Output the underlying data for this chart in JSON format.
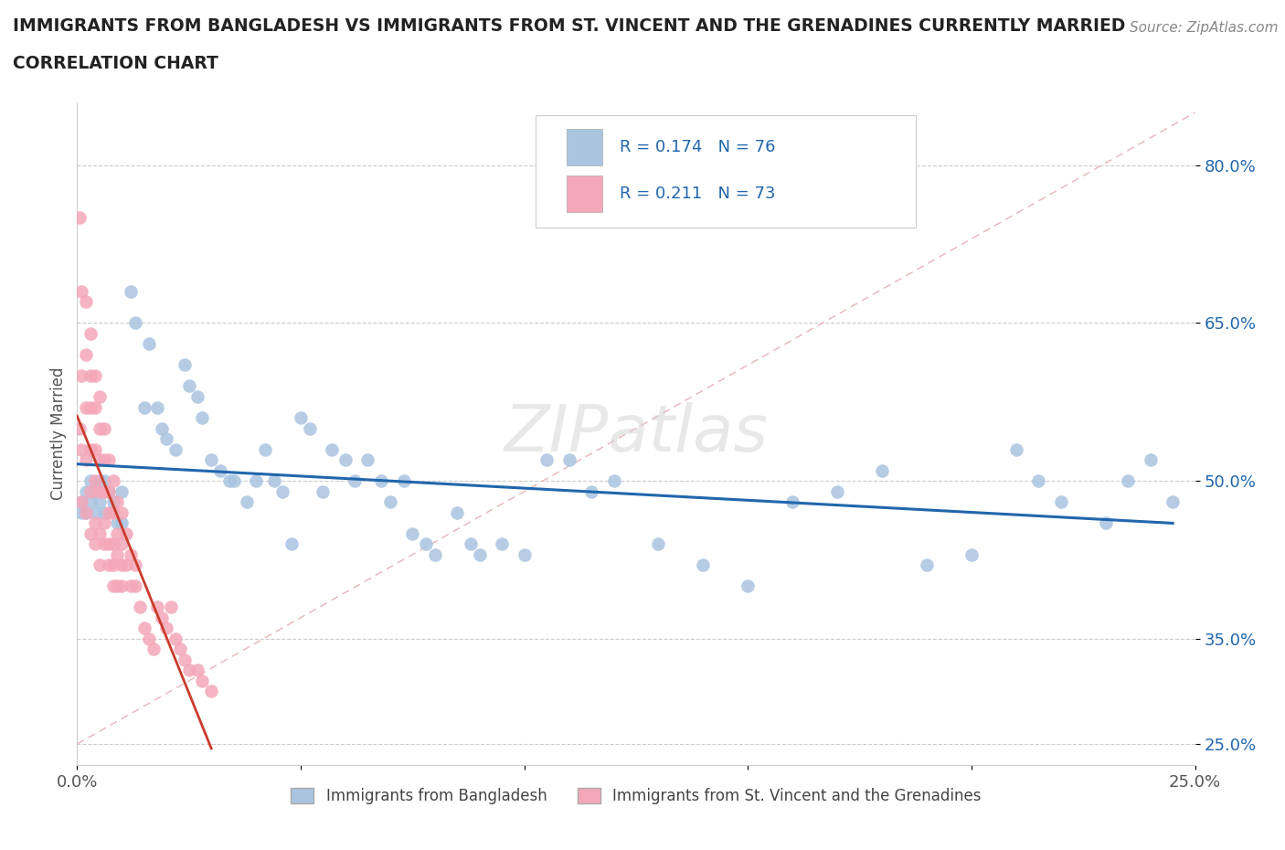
{
  "title_line1": "IMMIGRANTS FROM BANGLADESH VS IMMIGRANTS FROM ST. VINCENT AND THE GRENADINES CURRENTLY MARRIED",
  "title_line2": "CORRELATION CHART",
  "source_text": "Source: ZipAtlas.com",
  "ylabel": "Currently Married",
  "xlim": [
    0.0,
    0.25
  ],
  "ylim": [
    0.23,
    0.86
  ],
  "xtick_pos": [
    0.0,
    0.05,
    0.1,
    0.15,
    0.2,
    0.25
  ],
  "xticklabels": [
    "0.0%",
    "",
    "",
    "",
    "",
    "25.0%"
  ],
  "ytick_positions": [
    0.25,
    0.35,
    0.5,
    0.65,
    0.8
  ],
  "ytick_labels": [
    "25.0%",
    "35.0%",
    "50.0%",
    "65.0%",
    "80.0%"
  ],
  "R_blue": 0.174,
  "N_blue": 76,
  "R_pink": 0.211,
  "N_pink": 73,
  "color_blue": "#aac4e0",
  "color_pink": "#f4a7b9",
  "line_color_blue": "#2166ac",
  "line_color_pink": "#c93b2b",
  "legend_text_color": "#2166ac",
  "diag_color": "#e8b4b8",
  "blue_x": [
    0.001,
    0.001,
    0.002,
    0.002,
    0.003,
    0.003,
    0.004,
    0.004,
    0.005,
    0.005,
    0.006,
    0.006,
    0.007,
    0.008,
    0.009,
    0.01,
    0.01,
    0.012,
    0.013,
    0.015,
    0.016,
    0.018,
    0.019,
    0.02,
    0.022,
    0.024,
    0.025,
    0.027,
    0.028,
    0.03,
    0.032,
    0.034,
    0.035,
    0.038,
    0.04,
    0.042,
    0.044,
    0.046,
    0.048,
    0.05,
    0.052,
    0.055,
    0.057,
    0.06,
    0.062,
    0.065,
    0.068,
    0.07,
    0.073,
    0.075,
    0.078,
    0.08,
    0.085,
    0.088,
    0.09,
    0.095,
    0.1,
    0.105,
    0.11,
    0.115,
    0.12,
    0.13,
    0.14,
    0.15,
    0.16,
    0.17,
    0.18,
    0.19,
    0.2,
    0.21,
    0.215,
    0.22,
    0.23,
    0.235,
    0.24,
    0.245
  ],
  "blue_y": [
    0.48,
    0.47,
    0.49,
    0.47,
    0.5,
    0.48,
    0.49,
    0.47,
    0.5,
    0.48,
    0.5,
    0.47,
    0.49,
    0.48,
    0.46,
    0.49,
    0.46,
    0.68,
    0.65,
    0.57,
    0.63,
    0.57,
    0.55,
    0.54,
    0.53,
    0.61,
    0.59,
    0.58,
    0.56,
    0.52,
    0.51,
    0.5,
    0.5,
    0.48,
    0.5,
    0.53,
    0.5,
    0.49,
    0.44,
    0.56,
    0.55,
    0.49,
    0.53,
    0.52,
    0.5,
    0.52,
    0.5,
    0.48,
    0.5,
    0.45,
    0.44,
    0.43,
    0.47,
    0.44,
    0.43,
    0.44,
    0.43,
    0.52,
    0.52,
    0.49,
    0.5,
    0.44,
    0.42,
    0.4,
    0.48,
    0.49,
    0.51,
    0.42,
    0.43,
    0.53,
    0.5,
    0.48,
    0.46,
    0.5,
    0.52,
    0.48
  ],
  "pink_x": [
    0.0005,
    0.0005,
    0.001,
    0.001,
    0.001,
    0.001,
    0.002,
    0.002,
    0.002,
    0.002,
    0.002,
    0.003,
    0.003,
    0.003,
    0.003,
    0.003,
    0.003,
    0.004,
    0.004,
    0.004,
    0.004,
    0.004,
    0.004,
    0.005,
    0.005,
    0.005,
    0.005,
    0.005,
    0.005,
    0.006,
    0.006,
    0.006,
    0.006,
    0.006,
    0.007,
    0.007,
    0.007,
    0.007,
    0.007,
    0.008,
    0.008,
    0.008,
    0.008,
    0.008,
    0.009,
    0.009,
    0.009,
    0.009,
    0.01,
    0.01,
    0.01,
    0.01,
    0.011,
    0.011,
    0.012,
    0.012,
    0.013,
    0.013,
    0.014,
    0.015,
    0.016,
    0.017,
    0.018,
    0.019,
    0.02,
    0.021,
    0.022,
    0.023,
    0.024,
    0.025,
    0.027,
    0.028,
    0.03
  ],
  "pink_y": [
    0.75,
    0.55,
    0.68,
    0.6,
    0.53,
    0.48,
    0.67,
    0.62,
    0.57,
    0.52,
    0.47,
    0.64,
    0.6,
    0.57,
    0.53,
    0.49,
    0.45,
    0.6,
    0.57,
    0.53,
    0.5,
    0.46,
    0.44,
    0.58,
    0.55,
    0.52,
    0.49,
    0.45,
    0.42,
    0.55,
    0.52,
    0.49,
    0.46,
    0.44,
    0.52,
    0.49,
    0.47,
    0.44,
    0.42,
    0.5,
    0.47,
    0.44,
    0.42,
    0.4,
    0.48,
    0.45,
    0.43,
    0.4,
    0.47,
    0.44,
    0.42,
    0.4,
    0.45,
    0.42,
    0.43,
    0.4,
    0.42,
    0.4,
    0.38,
    0.36,
    0.35,
    0.34,
    0.38,
    0.37,
    0.36,
    0.38,
    0.35,
    0.34,
    0.33,
    0.32,
    0.32,
    0.31,
    0.3
  ]
}
